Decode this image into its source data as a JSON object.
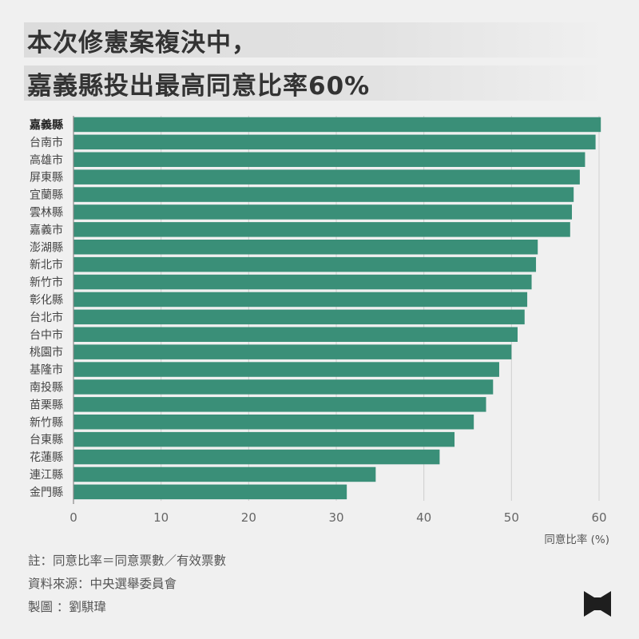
{
  "title": {
    "line1": "本次修憲案複決中，",
    "line2": "嘉義縣投出最高同意比率60%"
  },
  "chart_data": {
    "type": "bar",
    "orientation": "horizontal",
    "categories": [
      "嘉義縣",
      "台南市",
      "高雄市",
      "屏東縣",
      "宜蘭縣",
      "雲林縣",
      "嘉義市",
      "澎湖縣",
      "新北市",
      "新竹市",
      "彰化縣",
      "台北市",
      "台中市",
      "桃園市",
      "基隆市",
      "南投縣",
      "苗栗縣",
      "新竹縣",
      "台東縣",
      "花蓮縣",
      "連江縣",
      "金門縣"
    ],
    "values": [
      60.2,
      59.6,
      58.4,
      57.8,
      57.1,
      56.9,
      56.7,
      53.0,
      52.8,
      52.3,
      51.8,
      51.5,
      50.7,
      50.0,
      48.6,
      47.9,
      47.1,
      45.7,
      43.5,
      41.8,
      34.5,
      31.2
    ],
    "highlight": "嘉義縣",
    "xlim": [
      0,
      60
    ],
    "xticks": [
      "0",
      "10",
      "20",
      "30",
      "40",
      "50",
      "60"
    ],
    "xlabel": "同意比率 (%)",
    "grid": true,
    "bar_color": "#3a8f78"
  },
  "footnotes": {
    "note": "註：同意比率＝同意票數／有效票數",
    "source": "資料來源：中央選舉委員會",
    "author": "製圖 ：劉騏瑋"
  }
}
